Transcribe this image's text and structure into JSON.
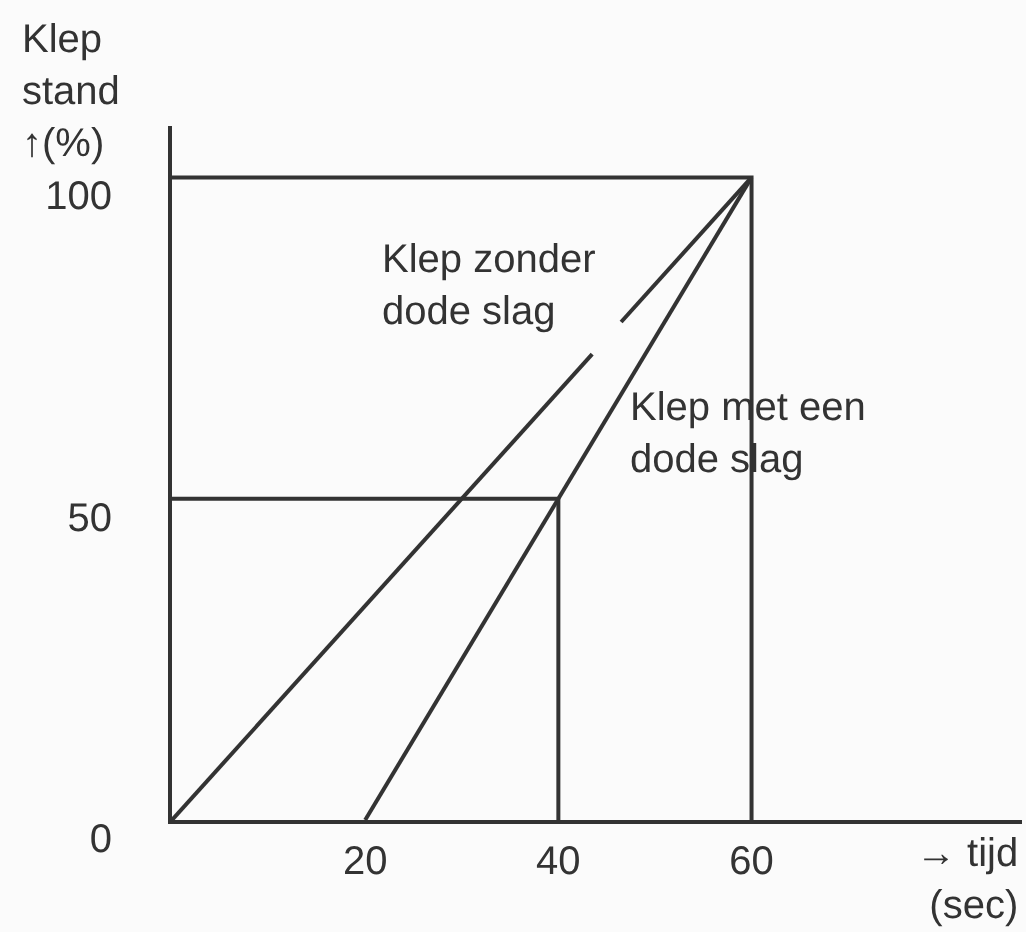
{
  "chart_data": {
    "type": "line",
    "xlabel": "→ tijd (sec)",
    "ylabel": "Klep stand ↑(%)",
    "xlim": [
      0,
      88
    ],
    "xticks": [
      20,
      40,
      60
    ],
    "ylim": [
      0,
      108
    ],
    "yticks": [
      0,
      50,
      100
    ],
    "series": [
      {
        "name": "Klep zonder dode slag",
        "color": "#333333",
        "x": [
          0,
          43.5,
          45,
          46.5,
          60
        ],
        "values": [
          0,
          72.5,
          null,
          77.5,
          100
        ]
      },
      {
        "name": "Klep met een dode slag",
        "color": "#333333",
        "x": [
          20,
          60
        ],
        "values": [
          0,
          100
        ]
      },
      {
        "color": "#333333",
        "x": [
          0,
          60,
          60
        ],
        "values": [
          100,
          100,
          0
        ]
      },
      {
        "color": "#333333",
        "x": [
          0,
          40,
          40
        ],
        "values": [
          50,
          50,
          0
        ]
      }
    ],
    "line_style": "solid",
    "grid": false,
    "legend": false
  }
}
